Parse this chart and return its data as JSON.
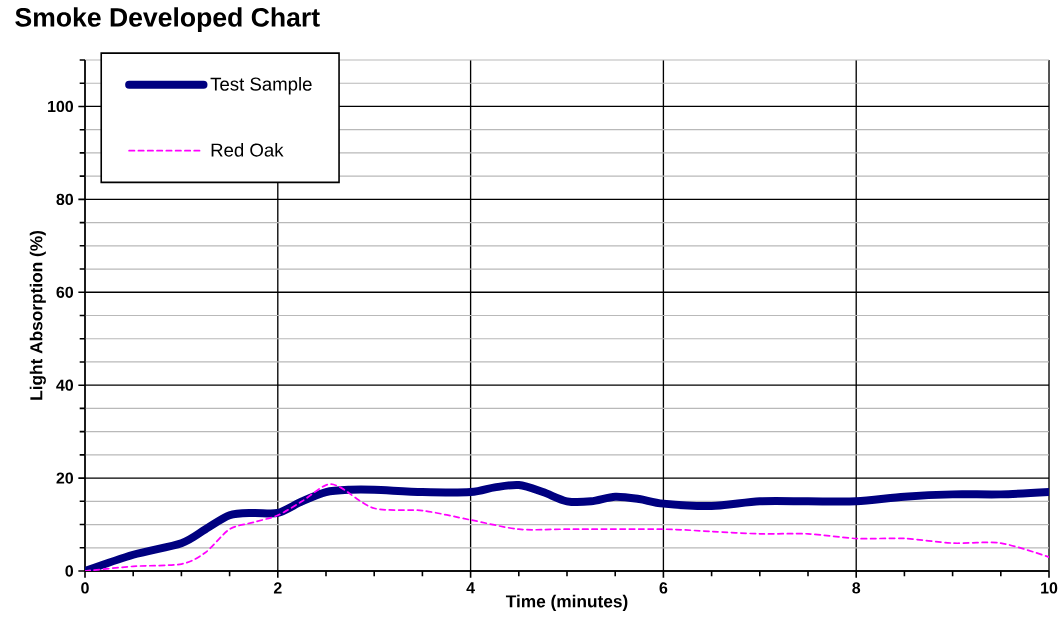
{
  "chart_data": {
    "type": "line",
    "title": "Smoke Developed Chart",
    "xlabel": "Time (minutes)",
    "ylabel": "Light Absorption (%)",
    "xlim": [
      0,
      10
    ],
    "ylim": [
      0,
      110
    ],
    "xticks": [
      0,
      {
        "value": 0.5,
        "label": null
      },
      {
        "value": 1,
        "label": null
      },
      {
        "value": 1.5,
        "label": null
      },
      2,
      {
        "value": 2.5,
        "label": null
      },
      {
        "value": 3,
        "label": null
      },
      {
        "value": 3.5,
        "label": null
      },
      4,
      {
        "value": 4.5,
        "label": null
      },
      {
        "value": 5,
        "label": null
      },
      {
        "value": 5.5,
        "label": null
      },
      6,
      {
        "value": 6.5,
        "label": null
      },
      {
        "value": 7,
        "label": null
      },
      {
        "value": 7.5,
        "label": null
      },
      8,
      {
        "value": 8.5,
        "label": null
      },
      {
        "value": 9,
        "label": null
      },
      {
        "value": 9.5,
        "label": null
      },
      10
    ],
    "yticks": [
      0,
      {
        "value": 5,
        "label": null
      },
      {
        "value": 10,
        "label": null
      },
      {
        "value": 15,
        "label": null
      },
      20,
      {
        "value": 25,
        "label": null
      },
      {
        "value": 30,
        "label": null
      },
      {
        "value": 35,
        "label": null
      },
      40,
      {
        "value": 45,
        "label": null
      },
      {
        "value": 50,
        "label": null
      },
      {
        "value": 55,
        "label": null
      },
      60,
      {
        "value": 65,
        "label": null
      },
      {
        "value": 70,
        "label": null
      },
      {
        "value": 75,
        "label": null
      },
      80,
      {
        "value": 85,
        "label": null
      },
      {
        "value": 90,
        "label": null
      },
      {
        "value": 95,
        "label": null
      },
      100,
      {
        "value": 105,
        "label": null
      },
      {
        "value": 110,
        "label": null
      }
    ],
    "grid": true,
    "legend": "top left",
    "marker": "none",
    "series": [
      {
        "name": "Test Sample",
        "color": "#000080",
        "line_style": "solid",
        "x": [
          0,
          0.5,
          1,
          1.25,
          1.5,
          1.75,
          2,
          2.25,
          2.5,
          2.75,
          3,
          3.5,
          4,
          4.25,
          4.5,
          4.75,
          5,
          5.25,
          5.5,
          5.75,
          6,
          6.5,
          7,
          7.5,
          8,
          8.5,
          9,
          9.5,
          10
        ],
        "values": [
          0,
          3.5,
          6,
          9,
          12,
          12.5,
          12.5,
          15,
          17,
          17.5,
          17.5,
          17,
          17,
          18,
          18.5,
          17,
          15,
          15,
          16,
          15.5,
          14.5,
          14,
          15,
          15,
          15,
          16,
          16.5,
          16.5,
          17
        ]
      },
      {
        "name": "Red Oak",
        "color": "#ff00ff",
        "line_style": "dashed",
        "x": [
          0,
          0.5,
          1,
          1.25,
          1.5,
          1.75,
          2,
          2.25,
          2.5,
          2.65,
          3,
          3.5,
          4,
          4.5,
          5,
          6,
          6.5,
          7,
          7.5,
          8,
          8.5,
          9,
          9.5,
          10
        ],
        "values": [
          0,
          1,
          1.5,
          4,
          9,
          10.5,
          12,
          15,
          18.5,
          18,
          13.5,
          13,
          11,
          9,
          9,
          9,
          8.5,
          8,
          8,
          7,
          7,
          6,
          6,
          3
        ]
      }
    ]
  }
}
